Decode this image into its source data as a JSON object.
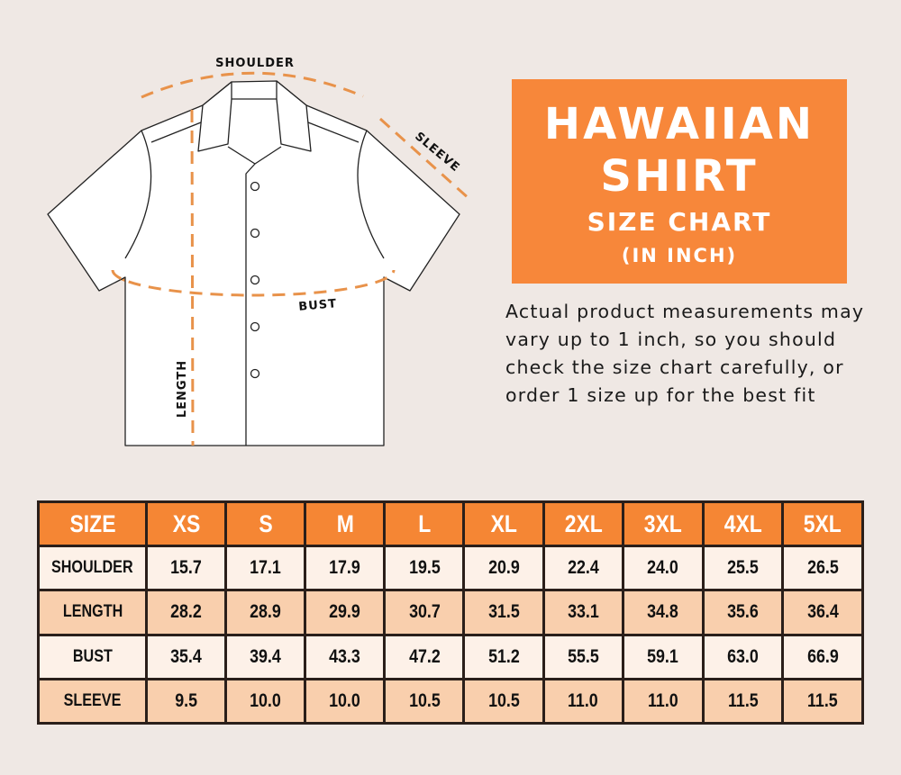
{
  "diagram": {
    "labels": {
      "shoulder": "SHOULDER",
      "sleeve": "SLEEVE",
      "bust": "BUST",
      "length": "LENGTH"
    },
    "dash_color": "#e8924a"
  },
  "title": {
    "line1": "HAWAIIAN",
    "line2": "SHIRT",
    "line3": "SIZE CHART",
    "line4": "(IN INCH)",
    "bg_color": "#f7873a"
  },
  "note": "Actual product measurements may vary up to 1 inch, so you should check the size chart carefully, or order 1 size up for the best fit",
  "size_table": {
    "header": [
      "SIZE",
      "XS",
      "S",
      "M",
      "L",
      "XL",
      "2XL",
      "3XL",
      "4XL",
      "5XL"
    ],
    "rows": [
      {
        "label": "SHOULDER",
        "values": [
          "15.7",
          "17.1",
          "17.9",
          "19.5",
          "20.9",
          "22.4",
          "24.0",
          "25.5",
          "26.5"
        ]
      },
      {
        "label": "LENGTH",
        "values": [
          "28.2",
          "28.9",
          "29.9",
          "30.7",
          "31.5",
          "33.1",
          "34.8",
          "35.6",
          "36.4"
        ]
      },
      {
        "label": "BUST",
        "values": [
          "35.4",
          "39.4",
          "43.3",
          "47.2",
          "51.2",
          "55.5",
          "59.1",
          "63.0",
          "66.9"
        ]
      },
      {
        "label": "SLEEVE",
        "values": [
          "9.5",
          "10.0",
          "10.0",
          "10.5",
          "10.5",
          "11.0",
          "11.0",
          "11.5",
          "11.5"
        ]
      }
    ],
    "header_color": "#f58634",
    "row_colors": [
      "#fdf1e8",
      "#f9cfad"
    ]
  }
}
